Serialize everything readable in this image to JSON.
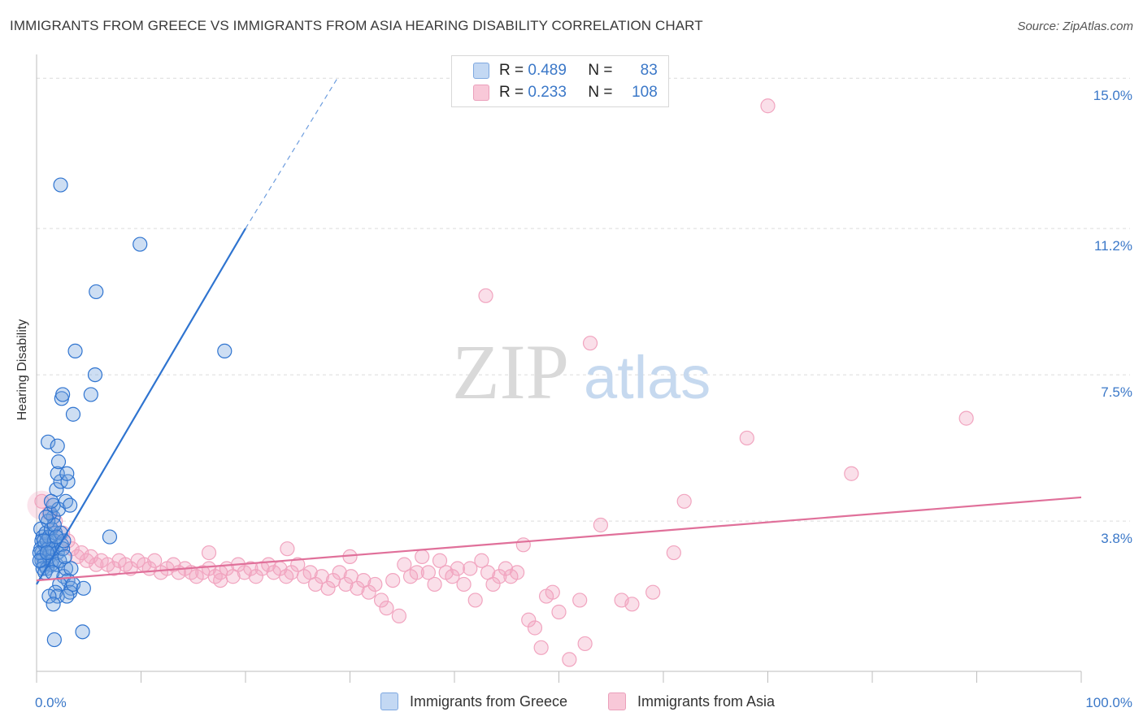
{
  "title": "IMMIGRANTS FROM GREECE VS IMMIGRANTS FROM ASIA HEARING DISABILITY CORRELATION CHART",
  "source": "Source: ZipAtlas.com",
  "watermark": {
    "zip": "ZIP",
    "atlas": "atlas"
  },
  "legend": {
    "rows": [
      {
        "r_key": "R =",
        "r_val": "0.489",
        "n_key": "N =",
        "n_val": "83"
      },
      {
        "r_key": "R =",
        "r_val": "0.233",
        "n_key": "N =",
        "n_val": "108"
      }
    ]
  },
  "bottom_legend": {
    "greece": "Immigrants from Greece",
    "asia": "Immigrants from Asia"
  },
  "chart_data": {
    "type": "scatter",
    "ylabel": "Hearing Disability",
    "xlim": [
      0,
      100
    ],
    "ylim": [
      0,
      15.6
    ],
    "x_tick_labels": {
      "left": "0.0%",
      "right": "100.0%"
    },
    "y_ticks": [
      {
        "value": 3.8,
        "label": "3.8%"
      },
      {
        "value": 7.5,
        "label": "7.5%"
      },
      {
        "value": 11.2,
        "label": "11.2%"
      },
      {
        "value": 15.0,
        "label": "15.0%"
      }
    ],
    "colors": {
      "greece": "#6fa0dd",
      "greece_line": "#2f74d0",
      "asia": "#f1a4bf",
      "asia_line": "#e0709a"
    },
    "series": [
      {
        "name": "Immigrants from Greece",
        "trend": {
          "x": [
            0,
            20
          ],
          "y": [
            2.2,
            11.2
          ],
          "dashed_to": {
            "x": 28.8,
            "y": 15.0
          }
        },
        "points": [
          [
            0.4,
            3.6
          ],
          [
            0.6,
            3.4
          ],
          [
            0.5,
            3.3
          ],
          [
            0.4,
            3.1
          ],
          [
            0.5,
            3.0
          ],
          [
            0.6,
            2.9
          ],
          [
            0.5,
            2.8
          ],
          [
            0.7,
            2.7
          ],
          [
            0.8,
            3.2
          ],
          [
            0.6,
            2.6
          ],
          [
            0.9,
            3.5
          ],
          [
            1.0,
            3.3
          ],
          [
            1.1,
            3.1
          ],
          [
            1.2,
            2.9
          ],
          [
            1.3,
            3.0
          ],
          [
            1.4,
            2.7
          ],
          [
            1.0,
            2.6
          ],
          [
            1.5,
            2.8
          ],
          [
            0.8,
            2.5
          ],
          [
            1.2,
            3.4
          ],
          [
            1.4,
            3.6
          ],
          [
            1.6,
            3.9
          ],
          [
            1.8,
            3.5
          ],
          [
            1.7,
            3.3
          ],
          [
            1.5,
            3.1
          ],
          [
            2.0,
            3.0
          ],
          [
            1.9,
            2.7
          ],
          [
            2.2,
            2.8
          ],
          [
            2.4,
            3.2
          ],
          [
            2.3,
            3.5
          ],
          [
            1.1,
            3.8
          ],
          [
            1.3,
            4.0
          ],
          [
            1.6,
            4.2
          ],
          [
            1.9,
            4.6
          ],
          [
            2.1,
            4.1
          ],
          [
            1.7,
            3.7
          ],
          [
            1.4,
            4.3
          ],
          [
            2.5,
            3.1
          ],
          [
            2.6,
            2.4
          ],
          [
            3.0,
            2.3
          ],
          [
            2.8,
            2.6
          ],
          [
            2.2,
            2.2
          ],
          [
            1.8,
            2.0
          ],
          [
            2.0,
            1.9
          ],
          [
            3.3,
            2.1
          ],
          [
            3.2,
            2.0
          ],
          [
            2.9,
            1.9
          ],
          [
            3.5,
            2.2
          ],
          [
            4.5,
            2.1
          ],
          [
            1.2,
            1.9
          ],
          [
            1.6,
            1.7
          ],
          [
            1.7,
            0.8
          ],
          [
            4.4,
            1.0
          ],
          [
            2.8,
            4.3
          ],
          [
            3.2,
            4.2
          ],
          [
            2.3,
            4.8
          ],
          [
            3.0,
            4.8
          ],
          [
            2.0,
            5.0
          ],
          [
            2.9,
            5.0
          ],
          [
            2.1,
            5.3
          ],
          [
            1.1,
            5.8
          ],
          [
            2.0,
            5.7
          ],
          [
            3.5,
            6.5
          ],
          [
            2.4,
            6.9
          ],
          [
            2.5,
            7.0
          ],
          [
            5.2,
            7.0
          ],
          [
            5.6,
            7.5
          ],
          [
            3.7,
            8.1
          ],
          [
            5.7,
            9.6
          ],
          [
            9.9,
            10.8
          ],
          [
            18.0,
            8.1
          ],
          [
            7.0,
            3.4
          ],
          [
            2.3,
            12.3
          ],
          [
            0.3,
            3.0
          ],
          [
            0.3,
            2.8
          ],
          [
            0.7,
            3.3
          ],
          [
            1.5,
            2.5
          ],
          [
            2.6,
            3.3
          ],
          [
            3.3,
            2.6
          ],
          [
            0.9,
            3.9
          ],
          [
            1.0,
            3.0
          ],
          [
            1.9,
            3.4
          ],
          [
            2.7,
            2.9
          ]
        ]
      },
      {
        "name": "Immigrants from Asia",
        "trend": {
          "x": [
            0,
            100
          ],
          "y": [
            2.3,
            4.4
          ]
        },
        "points": [
          [
            0.5,
            4.3
          ],
          [
            1.2,
            4.0
          ],
          [
            1.8,
            3.8
          ],
          [
            2.5,
            3.5
          ],
          [
            3.0,
            3.3
          ],
          [
            3.4,
            3.1
          ],
          [
            3.9,
            2.9
          ],
          [
            4.3,
            3.0
          ],
          [
            4.8,
            2.8
          ],
          [
            5.2,
            2.9
          ],
          [
            5.7,
            2.7
          ],
          [
            6.2,
            2.8
          ],
          [
            6.8,
            2.7
          ],
          [
            7.4,
            2.6
          ],
          [
            7.9,
            2.8
          ],
          [
            8.5,
            2.7
          ],
          [
            9.0,
            2.6
          ],
          [
            9.7,
            2.8
          ],
          [
            10.3,
            2.7
          ],
          [
            10.8,
            2.6
          ],
          [
            11.3,
            2.8
          ],
          [
            11.9,
            2.5
          ],
          [
            12.5,
            2.6
          ],
          [
            13.1,
            2.7
          ],
          [
            13.6,
            2.5
          ],
          [
            14.2,
            2.6
          ],
          [
            14.8,
            2.5
          ],
          [
            15.3,
            2.4
          ],
          [
            15.9,
            2.5
          ],
          [
            16.5,
            2.6
          ],
          [
            17.1,
            2.4
          ],
          [
            17.6,
            2.5
          ],
          [
            18.2,
            2.6
          ],
          [
            18.8,
            2.4
          ],
          [
            19.3,
            2.7
          ],
          [
            19.9,
            2.5
          ],
          [
            20.5,
            2.6
          ],
          [
            21.0,
            2.4
          ],
          [
            21.6,
            2.6
          ],
          [
            22.2,
            2.7
          ],
          [
            22.7,
            2.5
          ],
          [
            23.3,
            2.6
          ],
          [
            23.9,
            2.4
          ],
          [
            24.4,
            2.5
          ],
          [
            25.0,
            2.7
          ],
          [
            25.6,
            2.4
          ],
          [
            26.2,
            2.5
          ],
          [
            26.7,
            2.2
          ],
          [
            27.3,
            2.4
          ],
          [
            27.9,
            2.1
          ],
          [
            28.4,
            2.3
          ],
          [
            29.0,
            2.5
          ],
          [
            29.6,
            2.2
          ],
          [
            30.1,
            2.4
          ],
          [
            30.7,
            2.1
          ],
          [
            31.3,
            2.3
          ],
          [
            31.8,
            2.0
          ],
          [
            32.4,
            2.2
          ],
          [
            33.0,
            1.8
          ],
          [
            33.5,
            1.6
          ],
          [
            34.1,
            2.3
          ],
          [
            34.7,
            1.4
          ],
          [
            35.2,
            2.7
          ],
          [
            35.8,
            2.4
          ],
          [
            36.4,
            2.5
          ],
          [
            36.9,
            2.9
          ],
          [
            37.5,
            2.5
          ],
          [
            38.1,
            2.2
          ],
          [
            38.6,
            2.8
          ],
          [
            39.2,
            2.5
          ],
          [
            39.8,
            2.4
          ],
          [
            40.3,
            2.6
          ],
          [
            40.9,
            2.2
          ],
          [
            41.5,
            2.6
          ],
          [
            42.0,
            1.8
          ],
          [
            42.6,
            2.8
          ],
          [
            43.2,
            2.5
          ],
          [
            43.7,
            2.2
          ],
          [
            44.3,
            2.4
          ],
          [
            44.9,
            2.6
          ],
          [
            45.4,
            2.4
          ],
          [
            46.0,
            2.5
          ],
          [
            46.6,
            3.2
          ],
          [
            47.1,
            1.3
          ],
          [
            47.7,
            1.1
          ],
          [
            48.3,
            0.6
          ],
          [
            48.8,
            1.9
          ],
          [
            49.4,
            2.0
          ],
          [
            50.0,
            1.5
          ],
          [
            51.0,
            0.3
          ],
          [
            52.0,
            1.8
          ],
          [
            52.5,
            0.7
          ],
          [
            54.0,
            3.7
          ],
          [
            56.0,
            1.8
          ],
          [
            57.0,
            1.7
          ],
          [
            59.0,
            2.0
          ],
          [
            61.0,
            3.0
          ],
          [
            62.0,
            4.3
          ],
          [
            68.0,
            5.9
          ],
          [
            78.0,
            5.0
          ],
          [
            89.0,
            6.4
          ],
          [
            43.0,
            9.5
          ],
          [
            53.0,
            8.3
          ],
          [
            70.0,
            14.3
          ],
          [
            30.0,
            2.9
          ],
          [
            16.5,
            3.0
          ],
          [
            17.6,
            2.3
          ],
          [
            24.0,
            3.1
          ]
        ]
      }
    ]
  }
}
